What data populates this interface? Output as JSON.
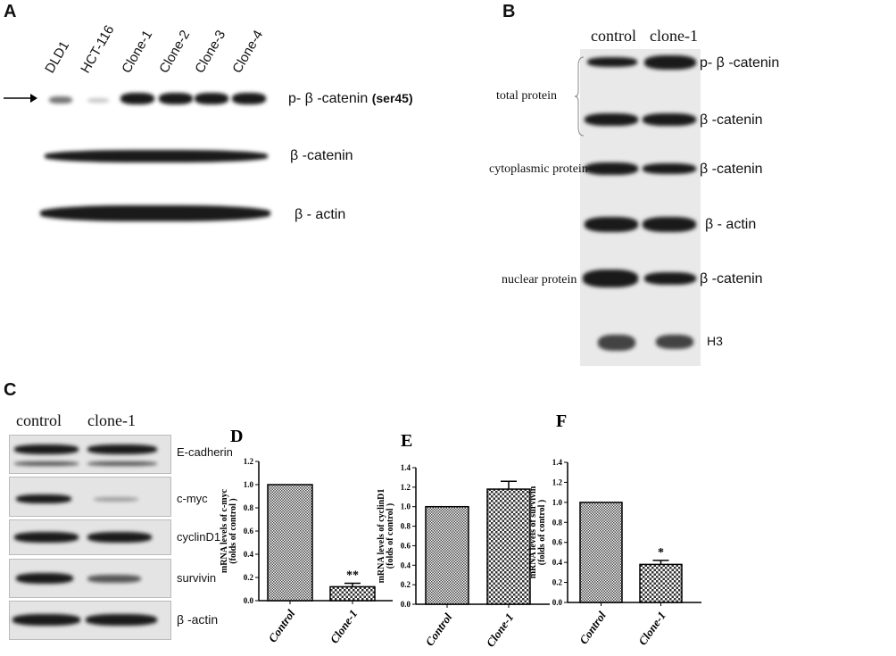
{
  "panel_a": {
    "letter": "A",
    "lanes": [
      "DLD1",
      "HCT-116",
      "Clone-1",
      "Clone-2",
      "Clone-3",
      "Clone-4"
    ],
    "rows": [
      "p- β -catenin",
      "β -catenin",
      "β - actin"
    ],
    "ser_label": "(ser45)",
    "arrow_icon": "arrow-right-icon"
  },
  "panel_b": {
    "letter": "B",
    "columns": [
      "control",
      "clone-1"
    ],
    "groups": [
      "total protein",
      "cytoplasmic protein",
      "nuclear protein"
    ],
    "rows": [
      "p- β -catenin",
      "β -catenin",
      "β -catenin",
      "β - actin",
      "β -catenin",
      "H3"
    ]
  },
  "panel_c": {
    "letter": "C",
    "columns": [
      "control",
      "clone-1"
    ],
    "rows": [
      "E-cadherin",
      "c-myc",
      "cyclinD1",
      "survivin",
      "β -actin"
    ]
  },
  "chart_data": [
    {
      "letter": "D",
      "type": "bar",
      "categories": [
        "Control",
        "Clone-1"
      ],
      "values": [
        1.0,
        0.12
      ],
      "errors": [
        0,
        0.03
      ],
      "significance": [
        "",
        "**"
      ],
      "ylabel": [
        "mRNA levels of c-myc",
        "(folds of control )"
      ],
      "ylim": [
        0,
        1.2
      ],
      "yticks": [
        "0.0",
        "0.2",
        "0.4",
        "0.6",
        "0.8",
        "1.0",
        "1.2"
      ]
    },
    {
      "letter": "E",
      "type": "bar",
      "categories": [
        "Control",
        "Clone-1"
      ],
      "values": [
        1.0,
        1.18
      ],
      "errors": [
        0,
        0.08
      ],
      "significance": [
        "",
        ""
      ],
      "ylabel": [
        "mRNA levels of cyclinD1",
        "(folds of control )"
      ],
      "ylim": [
        0,
        1.4
      ],
      "yticks": [
        "0.0",
        "0.2",
        "0.4",
        "0.6",
        "0.8",
        "1.0",
        "1.2",
        "1.4"
      ]
    },
    {
      "letter": "F",
      "type": "bar",
      "categories": [
        "Control",
        "Clone-1"
      ],
      "values": [
        1.0,
        0.38
      ],
      "errors": [
        0,
        0.04
      ],
      "significance": [
        "",
        "*"
      ],
      "ylabel": [
        "mRNA levels of survivin",
        "(folds of control )"
      ],
      "ylim": [
        0,
        1.4
      ],
      "yticks": [
        "0.0",
        "0.2",
        "0.4",
        "0.6",
        "0.8",
        "1.0",
        "1.2",
        "1.4"
      ]
    }
  ]
}
